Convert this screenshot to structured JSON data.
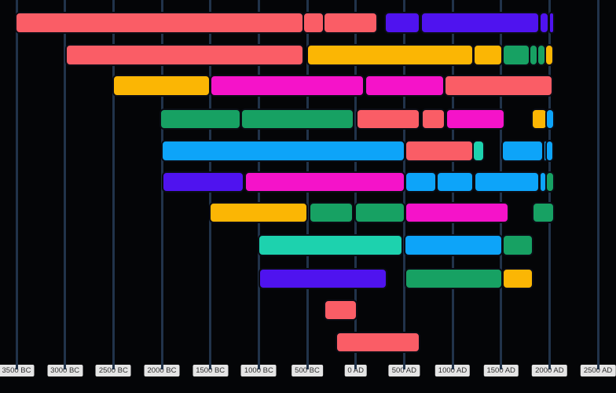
{
  "chart_data": {
    "type": "timeline-gantt",
    "description": "Dark-themed horizontal timeline (gantt) chart of eras from 3500 BC to present; 11 unlabeled civilization rows of rounded colored segments over vertical century gridlines",
    "axis": {
      "orientation": "horizontal-bottom",
      "unit": "year",
      "range": [
        -3500,
        2500
      ],
      "tick_step": 500,
      "ticks": [
        {
          "year": -3500,
          "label": "3500 BC"
        },
        {
          "year": -3000,
          "label": "3000 BC"
        },
        {
          "year": -2500,
          "label": "2500 BC"
        },
        {
          "year": -2000,
          "label": "2000 BC"
        },
        {
          "year": -1500,
          "label": "1500 BC"
        },
        {
          "year": -1000,
          "label": "1000 BC"
        },
        {
          "year": -500,
          "label": "500 BC"
        },
        {
          "year": 0,
          "label": "0 AD"
        },
        {
          "year": 500,
          "label": "500 AD"
        },
        {
          "year": 1000,
          "label": "1000 AD"
        },
        {
          "year": 1500,
          "label": "1500 AD"
        },
        {
          "year": 2000,
          "label": "2000 AD"
        },
        {
          "year": 2500,
          "label": "2500 AD"
        }
      ],
      "grid": true,
      "gridline_color": "#21334a",
      "tick_label_bg": "#e5e5e5",
      "tick_label_color": "#2f2f2f"
    },
    "palette": {
      "red": "#fa5d66",
      "gold": "#fbb604",
      "magenta": "#f513c9",
      "violet": "#4f13ef",
      "azure": "#0da4f9",
      "green": "#17a163",
      "teal": "#1dd2ae"
    },
    "segment_border_color": "#0a0c14",
    "background_color": "#040507",
    "rows": [
      {
        "segments": [
          {
            "start": -3500,
            "end": -550,
            "color": "red"
          },
          {
            "start": -530,
            "end": -340,
            "color": "red"
          },
          {
            "start": -320,
            "end": 210,
            "color": "red"
          },
          {
            "start": 310,
            "end": 655,
            "color": "violet"
          },
          {
            "start": 680,
            "end": 1885,
            "color": "violet"
          },
          {
            "start": 1910,
            "end": 1980,
            "color": "violet"
          },
          {
            "start": 2005,
            "end": 2035,
            "color": "violet"
          }
        ]
      },
      {
        "segments": [
          {
            "start": -2980,
            "end": -545,
            "color": "red"
          },
          {
            "start": -490,
            "end": 1200,
            "color": "gold"
          },
          {
            "start": 1225,
            "end": 1505,
            "color": "gold"
          },
          {
            "start": 1525,
            "end": 1785,
            "color": "green"
          },
          {
            "start": 1805,
            "end": 1865,
            "color": "green"
          },
          {
            "start": 1880,
            "end": 1945,
            "color": "green"
          },
          {
            "start": 1965,
            "end": 2030,
            "color": "gold"
          }
        ]
      },
      {
        "segments": [
          {
            "start": -2495,
            "end": -1515,
            "color": "gold"
          },
          {
            "start": -1490,
            "end": 75,
            "color": "magenta"
          },
          {
            "start": 110,
            "end": 900,
            "color": "magenta"
          },
          {
            "start": 925,
            "end": 2020,
            "color": "red"
          }
        ]
      },
      {
        "segments": [
          {
            "start": -2005,
            "end": -1200,
            "color": "green"
          },
          {
            "start": -1170,
            "end": -30,
            "color": "green"
          },
          {
            "start": 15,
            "end": 655,
            "color": "red"
          },
          {
            "start": 690,
            "end": 910,
            "color": "red"
          },
          {
            "start": 940,
            "end": 1530,
            "color": "magenta"
          },
          {
            "start": 1825,
            "end": 1965,
            "color": "gold"
          },
          {
            "start": 1970,
            "end": 2035,
            "color": "azure"
          }
        ]
      },
      {
        "segments": [
          {
            "start": -1990,
            "end": 495,
            "color": "azure"
          },
          {
            "start": 525,
            "end": 1200,
            "color": "red"
          },
          {
            "start": 1220,
            "end": 1315,
            "color": "teal"
          },
          {
            "start": 1515,
            "end": 1925,
            "color": "azure"
          },
          {
            "start": 1945,
            "end": 1965,
            "color": "azure"
          },
          {
            "start": 1975,
            "end": 2030,
            "color": "azure"
          }
        ]
      },
      {
        "segments": [
          {
            "start": -1985,
            "end": -1165,
            "color": "violet"
          },
          {
            "start": -1130,
            "end": 495,
            "color": "magenta"
          },
          {
            "start": 525,
            "end": 820,
            "color": "azure"
          },
          {
            "start": 845,
            "end": 1205,
            "color": "azure"
          },
          {
            "start": 1235,
            "end": 1885,
            "color": "azure"
          },
          {
            "start": 1905,
            "end": 1955,
            "color": "azure"
          },
          {
            "start": 1970,
            "end": 2035,
            "color": "green"
          }
        ]
      },
      {
        "segments": [
          {
            "start": -1495,
            "end": -510,
            "color": "gold"
          },
          {
            "start": -465,
            "end": -40,
            "color": "green"
          },
          {
            "start": 0,
            "end": 495,
            "color": "green"
          },
          {
            "start": 525,
            "end": 1565,
            "color": "magenta"
          },
          {
            "start": 1835,
            "end": 2035,
            "color": "green"
          }
        ]
      },
      {
        "segments": [
          {
            "start": -995,
            "end": 475,
            "color": "teal"
          },
          {
            "start": 515,
            "end": 1505,
            "color": "azure"
          },
          {
            "start": 1525,
            "end": 1820,
            "color": "green"
          }
        ]
      },
      {
        "segments": [
          {
            "start": -985,
            "end": 310,
            "color": "violet"
          },
          {
            "start": 520,
            "end": 1500,
            "color": "green"
          },
          {
            "start": 1525,
            "end": 1820,
            "color": "gold"
          }
        ]
      },
      {
        "segments": [
          {
            "start": -315,
            "end": 5,
            "color": "red"
          }
        ]
      },
      {
        "segments": [
          {
            "start": -195,
            "end": 655,
            "color": "red"
          }
        ]
      }
    ]
  }
}
